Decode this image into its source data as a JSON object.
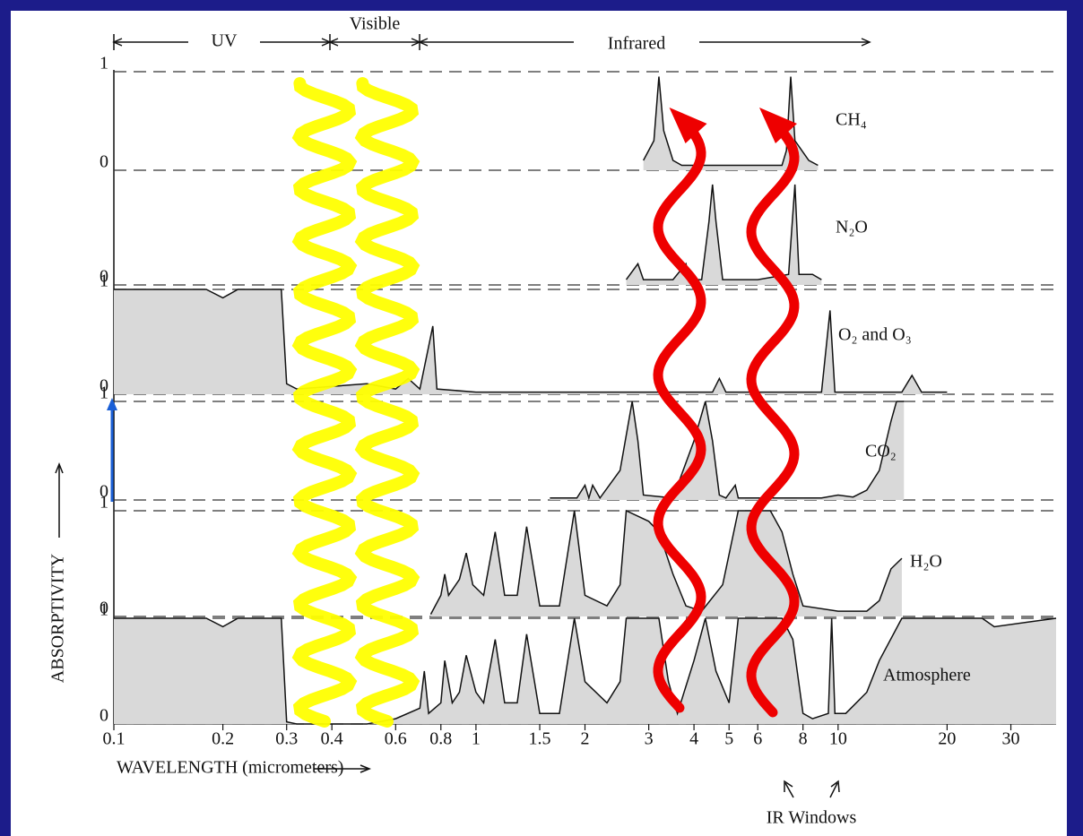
{
  "chart_data": {
    "type": "area",
    "x_label": "WAVELENGTH (micrometers)",
    "y_label": "ABSORPTIVITY",
    "xscale": "log",
    "xlim": [
      0.1,
      40
    ],
    "xticks": [
      0.1,
      0.2,
      0.3,
      0.4,
      0.6,
      0.8,
      1,
      1.5,
      2,
      3,
      4,
      5,
      6,
      8,
      10,
      20,
      30
    ],
    "ylim": [
      0,
      1
    ],
    "color": "#d9d9d9",
    "annotations": {
      "uv": "UV",
      "visible": "Visible",
      "infrared": "Infrared",
      "ir_windows": "IR Windows"
    },
    "series": [
      {
        "name": "CH₄",
        "yticks": [
          0,
          1
        ],
        "x": [
          2.9,
          3.1,
          3.2,
          3.3,
          3.5,
          3.7,
          4,
          5,
          6,
          7,
          7.2,
          7.4,
          7.6,
          8.3,
          8.8
        ],
        "values": [
          0.1,
          0.3,
          0.95,
          0.4,
          0.1,
          0.05,
          0.05,
          0.05,
          0.05,
          0.05,
          0.2,
          0.95,
          0.3,
          0.1,
          0.05
        ]
      },
      {
        "name": "N₂O",
        "yticks": [
          0
        ],
        "x": [
          2.6,
          2.8,
          2.9,
          3.5,
          3.8,
          3.9,
          4.2,
          4.4,
          4.5,
          4.6,
          4.8,
          6,
          7.3,
          7.6,
          7.8,
          8.5,
          9
        ],
        "values": [
          0.05,
          0.2,
          0.05,
          0.05,
          0.2,
          0.05,
          0.05,
          0.6,
          0.95,
          0.6,
          0.05,
          0.05,
          0.1,
          0.95,
          0.1,
          0.1,
          0.05
        ]
      },
      {
        "name": "O₂ and O₃",
        "yticks": [
          0,
          1
        ],
        "x": [
          0.1,
          0.18,
          0.2,
          0.22,
          0.29,
          0.3,
          0.32,
          0.5,
          0.6,
          0.65,
          0.7,
          0.76,
          0.78,
          1,
          2,
          4.5,
          4.7,
          4.9,
          9,
          9.5,
          9.8,
          15,
          16,
          17,
          20
        ],
        "values": [
          1,
          1,
          0.92,
          1,
          1,
          0.1,
          0.05,
          0.1,
          0.05,
          0.15,
          0.05,
          0.65,
          0.05,
          0.02,
          0.02,
          0.02,
          0.15,
          0.02,
          0.02,
          0.8,
          0.02,
          0.02,
          0.18,
          0.02,
          0.02
        ]
      },
      {
        "name": "CO₂",
        "yticks": [
          0,
          1
        ],
        "x": [
          1.6,
          1.9,
          2.0,
          2.05,
          2.1,
          2.2,
          2.5,
          2.7,
          2.8,
          2.9,
          3.5,
          4.0,
          4.3,
          4.5,
          4.7,
          4.9,
          5.2,
          5.3,
          9,
          10,
          11,
          12,
          13,
          14,
          14.5,
          15.2
        ],
        "values": [
          0.02,
          0.02,
          0.15,
          0.02,
          0.15,
          0.02,
          0.3,
          1,
          0.6,
          0.05,
          0.02,
          0.6,
          1,
          0.6,
          0.05,
          0.02,
          0.15,
          0.02,
          0.02,
          0.05,
          0.03,
          0.1,
          0.3,
          0.8,
          1,
          1
        ]
      },
      {
        "name": "H₂O",
        "yticks": [
          0,
          1
        ],
        "x": [
          0.75,
          0.8,
          0.82,
          0.84,
          0.9,
          0.94,
          0.98,
          1.05,
          1.13,
          1.2,
          1.3,
          1.38,
          1.5,
          1.7,
          1.87,
          2.0,
          2.3,
          2.5,
          2.6,
          3.0,
          3.2,
          3.5,
          3.8,
          4.2,
          4.8,
          5.3,
          6.5,
          7,
          7.5,
          8,
          10,
          12,
          13,
          14,
          15
        ],
        "values": [
          0.02,
          0.2,
          0.4,
          0.2,
          0.35,
          0.6,
          0.3,
          0.2,
          0.8,
          0.2,
          0.2,
          0.85,
          0.1,
          0.1,
          1,
          0.2,
          0.1,
          0.3,
          1,
          0.9,
          0.8,
          0.4,
          0.1,
          0.05,
          0.3,
          1,
          1,
          0.8,
          0.4,
          0.1,
          0.05,
          0.05,
          0.15,
          0.45,
          0.55
        ]
      },
      {
        "name": "Atmosphere",
        "yticks": [
          0,
          1
        ],
        "x": [
          0.1,
          0.18,
          0.2,
          0.22,
          0.29,
          0.3,
          0.32,
          0.5,
          0.6,
          0.7,
          0.72,
          0.74,
          0.8,
          0.82,
          0.86,
          0.9,
          0.94,
          1.0,
          1.05,
          1.13,
          1.2,
          1.3,
          1.38,
          1.5,
          1.7,
          1.87,
          2.0,
          2.3,
          2.5,
          2.6,
          3.2,
          3.4,
          3.6,
          4.0,
          4.3,
          4.6,
          5.0,
          5.3,
          7,
          7.5,
          8,
          8.5,
          9.4,
          9.6,
          9.8,
          10.5,
          12,
          13,
          15,
          25,
          27,
          40
        ],
        "values": [
          1,
          1,
          0.92,
          1,
          1,
          0.02,
          0,
          0,
          0.05,
          0.15,
          0.5,
          0.1,
          0.2,
          0.6,
          0.2,
          0.3,
          0.65,
          0.3,
          0.2,
          0.8,
          0.2,
          0.2,
          0.85,
          0.1,
          0.1,
          1,
          0.4,
          0.2,
          0.4,
          1,
          1,
          0.4,
          0.1,
          0.6,
          1,
          0.5,
          0.2,
          1,
          1,
          0.8,
          0.1,
          0.05,
          0.1,
          1,
          0.1,
          0.1,
          0.3,
          0.6,
          1,
          1,
          0.92,
          1
        ]
      }
    ]
  }
}
